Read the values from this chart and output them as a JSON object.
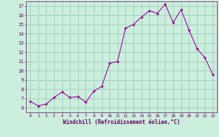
{
  "x": [
    0,
    1,
    2,
    3,
    4,
    5,
    6,
    7,
    8,
    9,
    10,
    11,
    12,
    13,
    14,
    15,
    16,
    17,
    18,
    19,
    20,
    21,
    22,
    23
  ],
  "y": [
    6.7,
    6.2,
    6.4,
    7.1,
    7.7,
    7.1,
    7.2,
    6.6,
    7.8,
    8.3,
    10.8,
    11.0,
    14.6,
    15.0,
    15.8,
    16.5,
    16.2,
    17.2,
    15.2,
    16.6,
    14.4,
    12.4,
    11.4,
    9.6
  ],
  "line_color": "#990099",
  "marker_color": "#990099",
  "bg_color": "#cceedd",
  "grid_color": "#99ccbb",
  "xlabel": "Windchill (Refroidissement éolien,°C)",
  "xlim": [
    -0.5,
    23.5
  ],
  "ylim": [
    5.5,
    17.5
  ],
  "yticks": [
    6,
    7,
    8,
    9,
    10,
    11,
    12,
    13,
    14,
    15,
    16,
    17
  ],
  "xtick_labels": [
    "0",
    "1",
    "2",
    "3",
    "4",
    "5",
    "6",
    "7",
    "8",
    "9",
    "10",
    "11",
    "12",
    "13",
    "14",
    "15",
    "16",
    "17",
    "18",
    "19",
    "20",
    "21",
    "22",
    "23"
  ],
  "label_color": "#660066",
  "tick_color": "#660066",
  "spine_color": "#660066"
}
